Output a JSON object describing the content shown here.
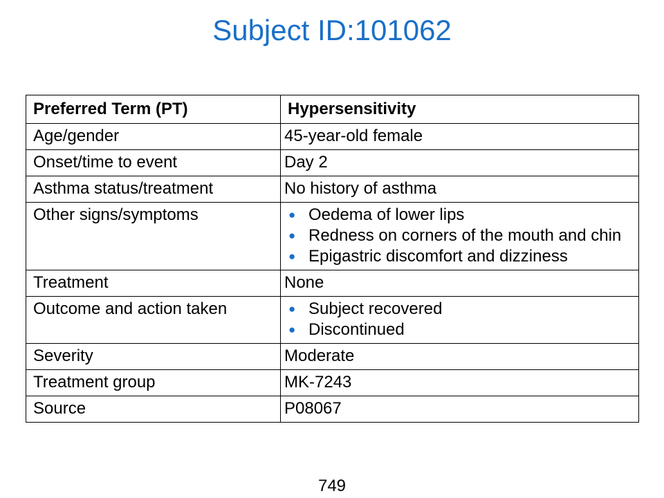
{
  "title": "Subject ID:101062",
  "table": {
    "header": {
      "label": "Preferred Term (PT)",
      "value": "Hypersensitivity"
    },
    "rows": [
      {
        "label": "Age/gender",
        "value": "45-year-old female"
      },
      {
        "label": "Onset/time to event",
        "value": "Day 2"
      },
      {
        "label": "Asthma status/treatment",
        "value": "No history of asthma"
      },
      {
        "label": "Other signs/symptoms",
        "bullets": [
          "Oedema of lower lips",
          "Redness on corners of the mouth and chin",
          "Epigastric discomfort and dizziness"
        ]
      },
      {
        "label": "Treatment",
        "value": "None"
      },
      {
        "label": "Outcome and action taken",
        "bullets": [
          "Subject recovered",
          "Discontinued"
        ]
      },
      {
        "label": "Severity",
        "value": "Moderate"
      },
      {
        "label": "Treatment group",
        "value": "MK-7243"
      },
      {
        "label": "Source",
        "value": "P08067"
      }
    ]
  },
  "bullet_symbol": "●",
  "page_number": "749",
  "colors": {
    "title": "#1a6fc8",
    "bullet": "#1a6fc8",
    "border": "#000000"
  }
}
